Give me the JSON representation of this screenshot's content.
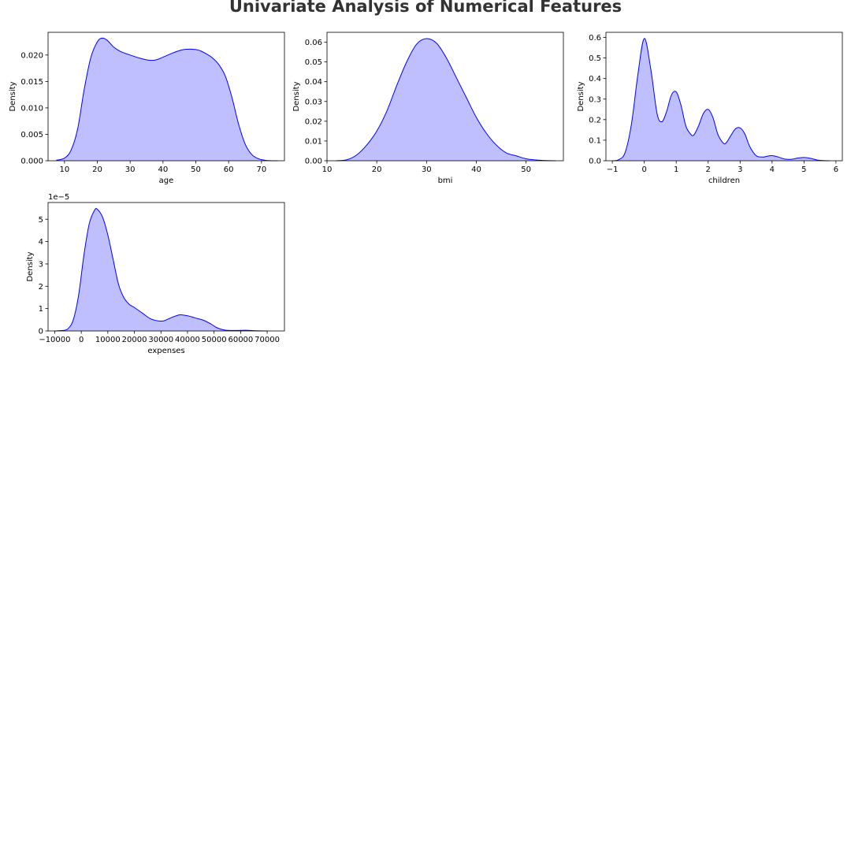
{
  "title": "Univariate Analysis of Numerical Features",
  "colors": {
    "fill": "#bfbfff",
    "line": "#0000ff",
    "axes": "#000000"
  },
  "chart_data": [
    {
      "type": "area",
      "xlabel": "age",
      "ylabel": "Density",
      "xlim": [
        5,
        77
      ],
      "ylim": [
        0,
        0.0243
      ],
      "xticks": [
        10,
        20,
        30,
        40,
        50,
        60,
        70
      ],
      "yticks": [
        0.0,
        0.005,
        0.01,
        0.015,
        0.02
      ],
      "ytick_labels": [
        "0.000",
        "0.005",
        "0.010",
        "0.015",
        "0.020"
      ],
      "series": [
        {
          "x": [
            7.5,
            10,
            12,
            14,
            16,
            18,
            20,
            21.5,
            23,
            25,
            27,
            30,
            33,
            36,
            38,
            40,
            43,
            46,
            49,
            51,
            53,
            55,
            57,
            59,
            61,
            63,
            65,
            67,
            69,
            71,
            73,
            75
          ],
          "y": [
            0.0001,
            0.0005,
            0.002,
            0.006,
            0.0135,
            0.0195,
            0.0225,
            0.0232,
            0.0228,
            0.0215,
            0.0207,
            0.02,
            0.0194,
            0.019,
            0.0191,
            0.0196,
            0.0204,
            0.021,
            0.0211,
            0.0209,
            0.0203,
            0.0195,
            0.0182,
            0.016,
            0.012,
            0.007,
            0.0032,
            0.0012,
            0.0004,
            0.0001,
            0.0,
            0.0
          ]
        }
      ]
    },
    {
      "type": "area",
      "xlabel": "bmi",
      "ylabel": "Density",
      "xlim": [
        10,
        57.5
      ],
      "ylim": [
        0,
        0.065
      ],
      "xticks": [
        10,
        20,
        30,
        40,
        50
      ],
      "yticks": [
        0.0,
        0.01,
        0.02,
        0.03,
        0.04,
        0.05,
        0.06
      ],
      "ytick_labels": [
        "0.00",
        "0.01",
        "0.02",
        "0.03",
        "0.04",
        "0.05",
        "0.06"
      ],
      "series": [
        {
          "x": [
            11.8,
            14,
            16,
            18,
            20,
            22,
            24,
            26,
            28,
            30,
            32,
            34,
            36,
            38,
            40,
            42,
            44,
            46,
            48,
            50,
            52,
            54,
            56
          ],
          "y": [
            0.0,
            0.0005,
            0.003,
            0.008,
            0.015,
            0.025,
            0.038,
            0.05,
            0.059,
            0.0618,
            0.0595,
            0.052,
            0.042,
            0.032,
            0.022,
            0.014,
            0.008,
            0.004,
            0.0025,
            0.001,
            0.0004,
            0.0001,
            0.0
          ]
        }
      ]
    },
    {
      "type": "area",
      "xlabel": "children",
      "ylabel": "Density",
      "xlim": [
        -1.2,
        6.2
      ],
      "ylim": [
        0,
        0.625
      ],
      "xticks": [
        -1,
        0,
        1,
        2,
        3,
        4,
        5,
        6
      ],
      "xtick_labels": [
        "−1",
        "0",
        "1",
        "2",
        "3",
        "4",
        "5",
        "6"
      ],
      "yticks": [
        0.0,
        0.1,
        0.2,
        0.3,
        0.4,
        0.5,
        0.6
      ],
      "ytick_labels": [
        "0.0",
        "0.1",
        "0.2",
        "0.3",
        "0.4",
        "0.5",
        "0.6"
      ],
      "series": [
        {
          "x": [
            -1.0,
            -0.8,
            -0.6,
            -0.4,
            -0.2,
            0.0,
            0.2,
            0.4,
            0.55,
            0.7,
            0.85,
            1.0,
            1.15,
            1.3,
            1.45,
            1.55,
            1.7,
            1.85,
            2.0,
            2.15,
            2.3,
            2.45,
            2.55,
            2.7,
            2.85,
            3.0,
            3.15,
            3.3,
            3.5,
            3.7,
            3.85,
            4.0,
            4.2,
            4.4,
            4.6,
            4.8,
            5.0,
            5.2,
            5.4,
            5.6,
            5.8
          ],
          "y": [
            0.0,
            0.005,
            0.04,
            0.18,
            0.42,
            0.595,
            0.45,
            0.23,
            0.19,
            0.24,
            0.32,
            0.335,
            0.27,
            0.17,
            0.13,
            0.125,
            0.17,
            0.23,
            0.25,
            0.21,
            0.13,
            0.09,
            0.085,
            0.12,
            0.155,
            0.16,
            0.13,
            0.07,
            0.025,
            0.018,
            0.022,
            0.025,
            0.018,
            0.008,
            0.007,
            0.013,
            0.016,
            0.012,
            0.004,
            0.001,
            0.0
          ]
        }
      ]
    },
    {
      "type": "area",
      "xlabel": "expenses",
      "ylabel": "Density",
      "offset_label": "1e−5",
      "xlim": [
        -12500,
        76500
      ],
      "ylim": [
        0,
        5.75
      ],
      "xticks": [
        -10000,
        0,
        10000,
        20000,
        30000,
        40000,
        50000,
        60000,
        70000
      ],
      "xtick_labels": [
        "−10000",
        "0",
        "10000",
        "20000",
        "30000",
        "40000",
        "50000",
        "60000",
        "70000"
      ],
      "yticks": [
        0,
        1,
        2,
        3,
        4,
        5
      ],
      "ytick_labels": [
        "0",
        "1",
        "2",
        "3",
        "4",
        "5"
      ],
      "series": [
        {
          "x": [
            -10000,
            -7000,
            -5000,
            -3000,
            -1000,
            1000,
            3000,
            5000,
            6000,
            8000,
            10000,
            12000,
            14000,
            16000,
            18000,
            20000,
            23000,
            26000,
            29000,
            31000,
            33000,
            35000,
            37000,
            39000,
            41000,
            43000,
            46000,
            49000,
            51000,
            54000,
            58000,
            62000,
            66000,
            70000
          ],
          "y": [
            0.0,
            0.02,
            0.1,
            0.5,
            1.6,
            3.4,
            4.8,
            5.4,
            5.45,
            5.1,
            4.3,
            3.2,
            2.1,
            1.5,
            1.2,
            1.05,
            0.8,
            0.55,
            0.45,
            0.45,
            0.55,
            0.65,
            0.72,
            0.7,
            0.65,
            0.58,
            0.48,
            0.3,
            0.15,
            0.04,
            0.02,
            0.03,
            0.01,
            0.0
          ]
        }
      ]
    }
  ]
}
